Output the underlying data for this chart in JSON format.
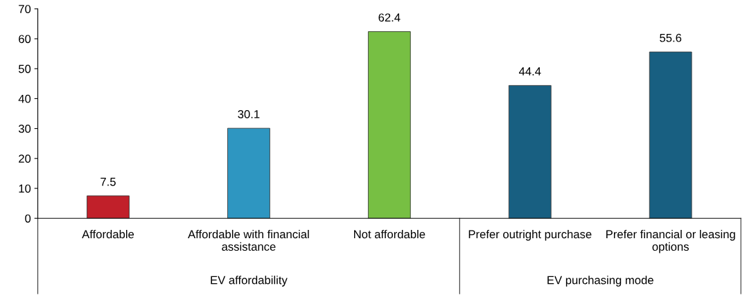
{
  "chart_data": {
    "type": "bar",
    "categories": [
      "Affordable",
      "Affordable with financial\nassistance",
      "Not affordable",
      "Prefer outright purchase",
      "Prefer financial or leasing\noptions"
    ],
    "values": [
      7.5,
      30.1,
      62.4,
      44.4,
      55.6
    ],
    "colors": [
      "#c1202a",
      "#2e96c1",
      "#77bf43",
      "#185f81",
      "#185f81"
    ],
    "ylim": [
      0,
      70
    ],
    "yticks": [
      0,
      10,
      20,
      30,
      40,
      50,
      60,
      70
    ],
    "data_labels": true,
    "grid": false,
    "annotations": [
      "EV affordability",
      "EV purchasing mode"
    ]
  }
}
